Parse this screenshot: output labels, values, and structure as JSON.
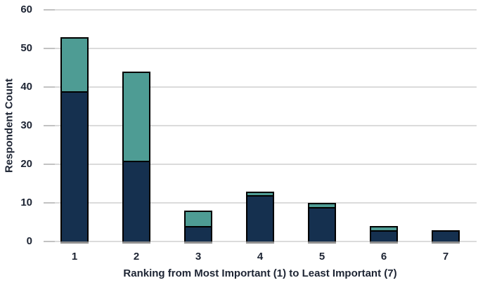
{
  "chart_data": {
    "type": "bar",
    "stacked": true,
    "title": "",
    "xlabel": "Ranking from Most Important (1) to Least Important (7)",
    "ylabel": "Respondent Count",
    "categories": [
      "1",
      "2",
      "3",
      "4",
      "5",
      "6",
      "7"
    ],
    "series": [
      {
        "name": "bottom-segment",
        "color": "#15304F",
        "values": [
          39,
          21,
          4,
          12,
          9,
          3,
          3
        ]
      },
      {
        "name": "top-segment",
        "color": "#4E9C94",
        "values": [
          14,
          23,
          4,
          1,
          1,
          1,
          0
        ]
      }
    ],
    "totals": [
      53,
      44,
      8,
      13,
      10,
      4,
      3
    ],
    "ylim": [
      0,
      60
    ],
    "yticks": [
      0,
      10,
      20,
      30,
      40,
      50,
      60
    ],
    "grid": true,
    "legend": false
  },
  "colors": {
    "bar_dark": "#15304F",
    "bar_teal": "#4E9C94",
    "bar_border": "#000000",
    "bar_shadow": "#8F8F8F",
    "gridline": "#DBDBDB",
    "tick_mark": "#C2C2C2",
    "text": "#1D2433",
    "background": "#FFFFFF"
  }
}
